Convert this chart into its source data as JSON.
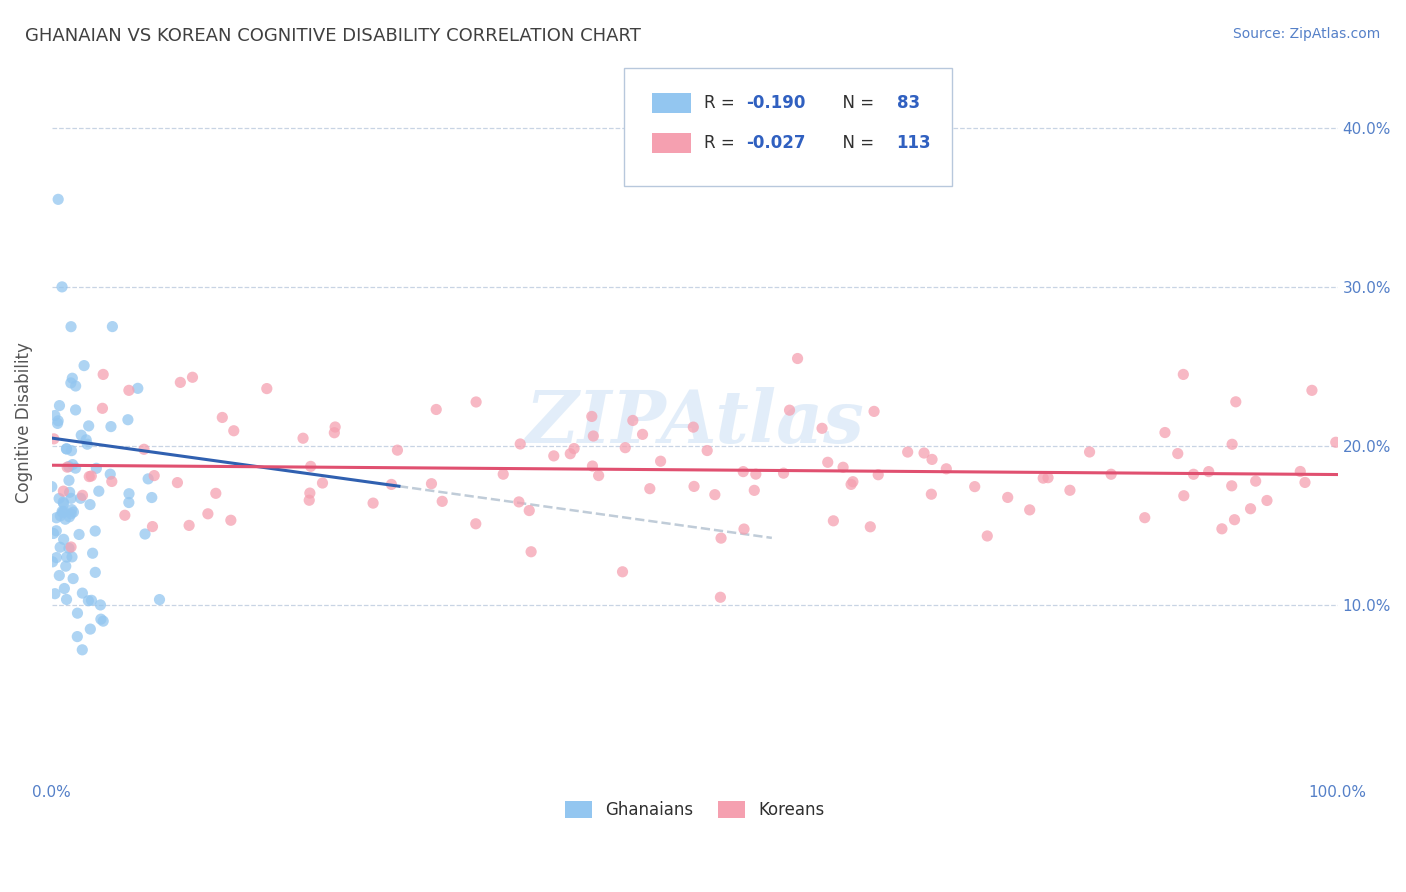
{
  "title": "GHANAIAN VS KOREAN COGNITIVE DISABILITY CORRELATION CHART",
  "source": "Source: ZipAtlas.com",
  "ylabel": "Cognitive Disability",
  "xlim": [
    0.0,
    1.0
  ],
  "ylim": [
    -0.01,
    0.44
  ],
  "ghanaian_color": "#93c6f0",
  "korean_color": "#f5a0b0",
  "ghanaian_R": -0.19,
  "ghanaian_N": 83,
  "korean_R": -0.027,
  "korean_N": 113,
  "trend_blue_color": "#3060b0",
  "trend_pink_color": "#e05070",
  "trend_dash_color": "#c0ccd8",
  "watermark": "ZIPAtlas",
  "background_color": "#ffffff",
  "grid_color": "#c8d4e4",
  "title_color": "#404040",
  "axis_label_color": "#5580c8",
  "ytick_labels": [
    "10.0%",
    "20.0%",
    "30.0%",
    "40.0%"
  ],
  "ytick_values": [
    0.1,
    0.2,
    0.3,
    0.4
  ],
  "legend_left_label": "Ghanaians",
  "legend_right_label": "Koreans"
}
